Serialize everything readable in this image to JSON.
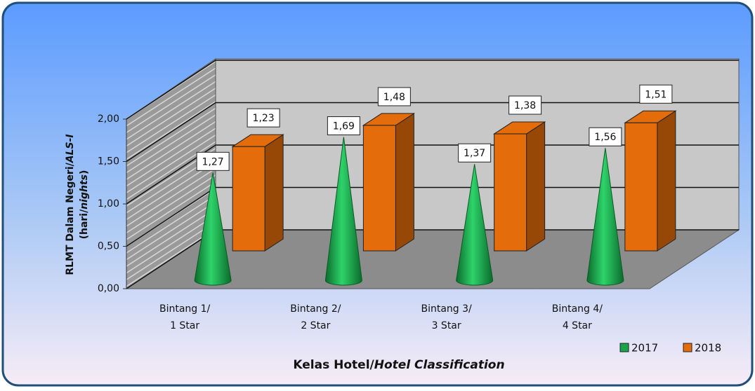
{
  "chart_data": {
    "type": "bar3d",
    "categories": [
      [
        "Bintang 1/",
        "1 Star"
      ],
      [
        "Bintang 2/",
        "2 Star"
      ],
      [
        "Bintang 3/",
        "3 Star"
      ],
      [
        "Bintang 4/",
        "4 Star"
      ]
    ],
    "series": [
      {
        "name": "2017",
        "color": "#1aa34a",
        "shape": "cone",
        "values": [
          1.27,
          1.69,
          1.37,
          1.56
        ],
        "value_labels": [
          "1,27",
          "1,69",
          "1,37",
          "1,56"
        ]
      },
      {
        "name": "2018",
        "color": "#e46c0a",
        "shape": "box",
        "values": [
          1.23,
          1.48,
          1.38,
          1.51
        ],
        "value_labels": [
          "1,23",
          "1,48",
          "1,38",
          "1,51"
        ]
      }
    ],
    "ylim": [
      0,
      2
    ],
    "yticks": [
      {
        "value": 0,
        "label": "0,00"
      },
      {
        "value": 0.5,
        "label": "0,50"
      },
      {
        "value": 1,
        "label": "1,00"
      },
      {
        "value": 1.5,
        "label": "1,50"
      },
      {
        "value": 2,
        "label": "2,00"
      }
    ],
    "ylabel": [
      "RLMT Dalam Negeri/",
      "ALS-I",
      "(hari/",
      "nights",
      ")"
    ],
    "xlabel": [
      "Kelas Hotel/",
      "Hotel Classification"
    ],
    "grid": true,
    "legend": "bottom-right"
  }
}
